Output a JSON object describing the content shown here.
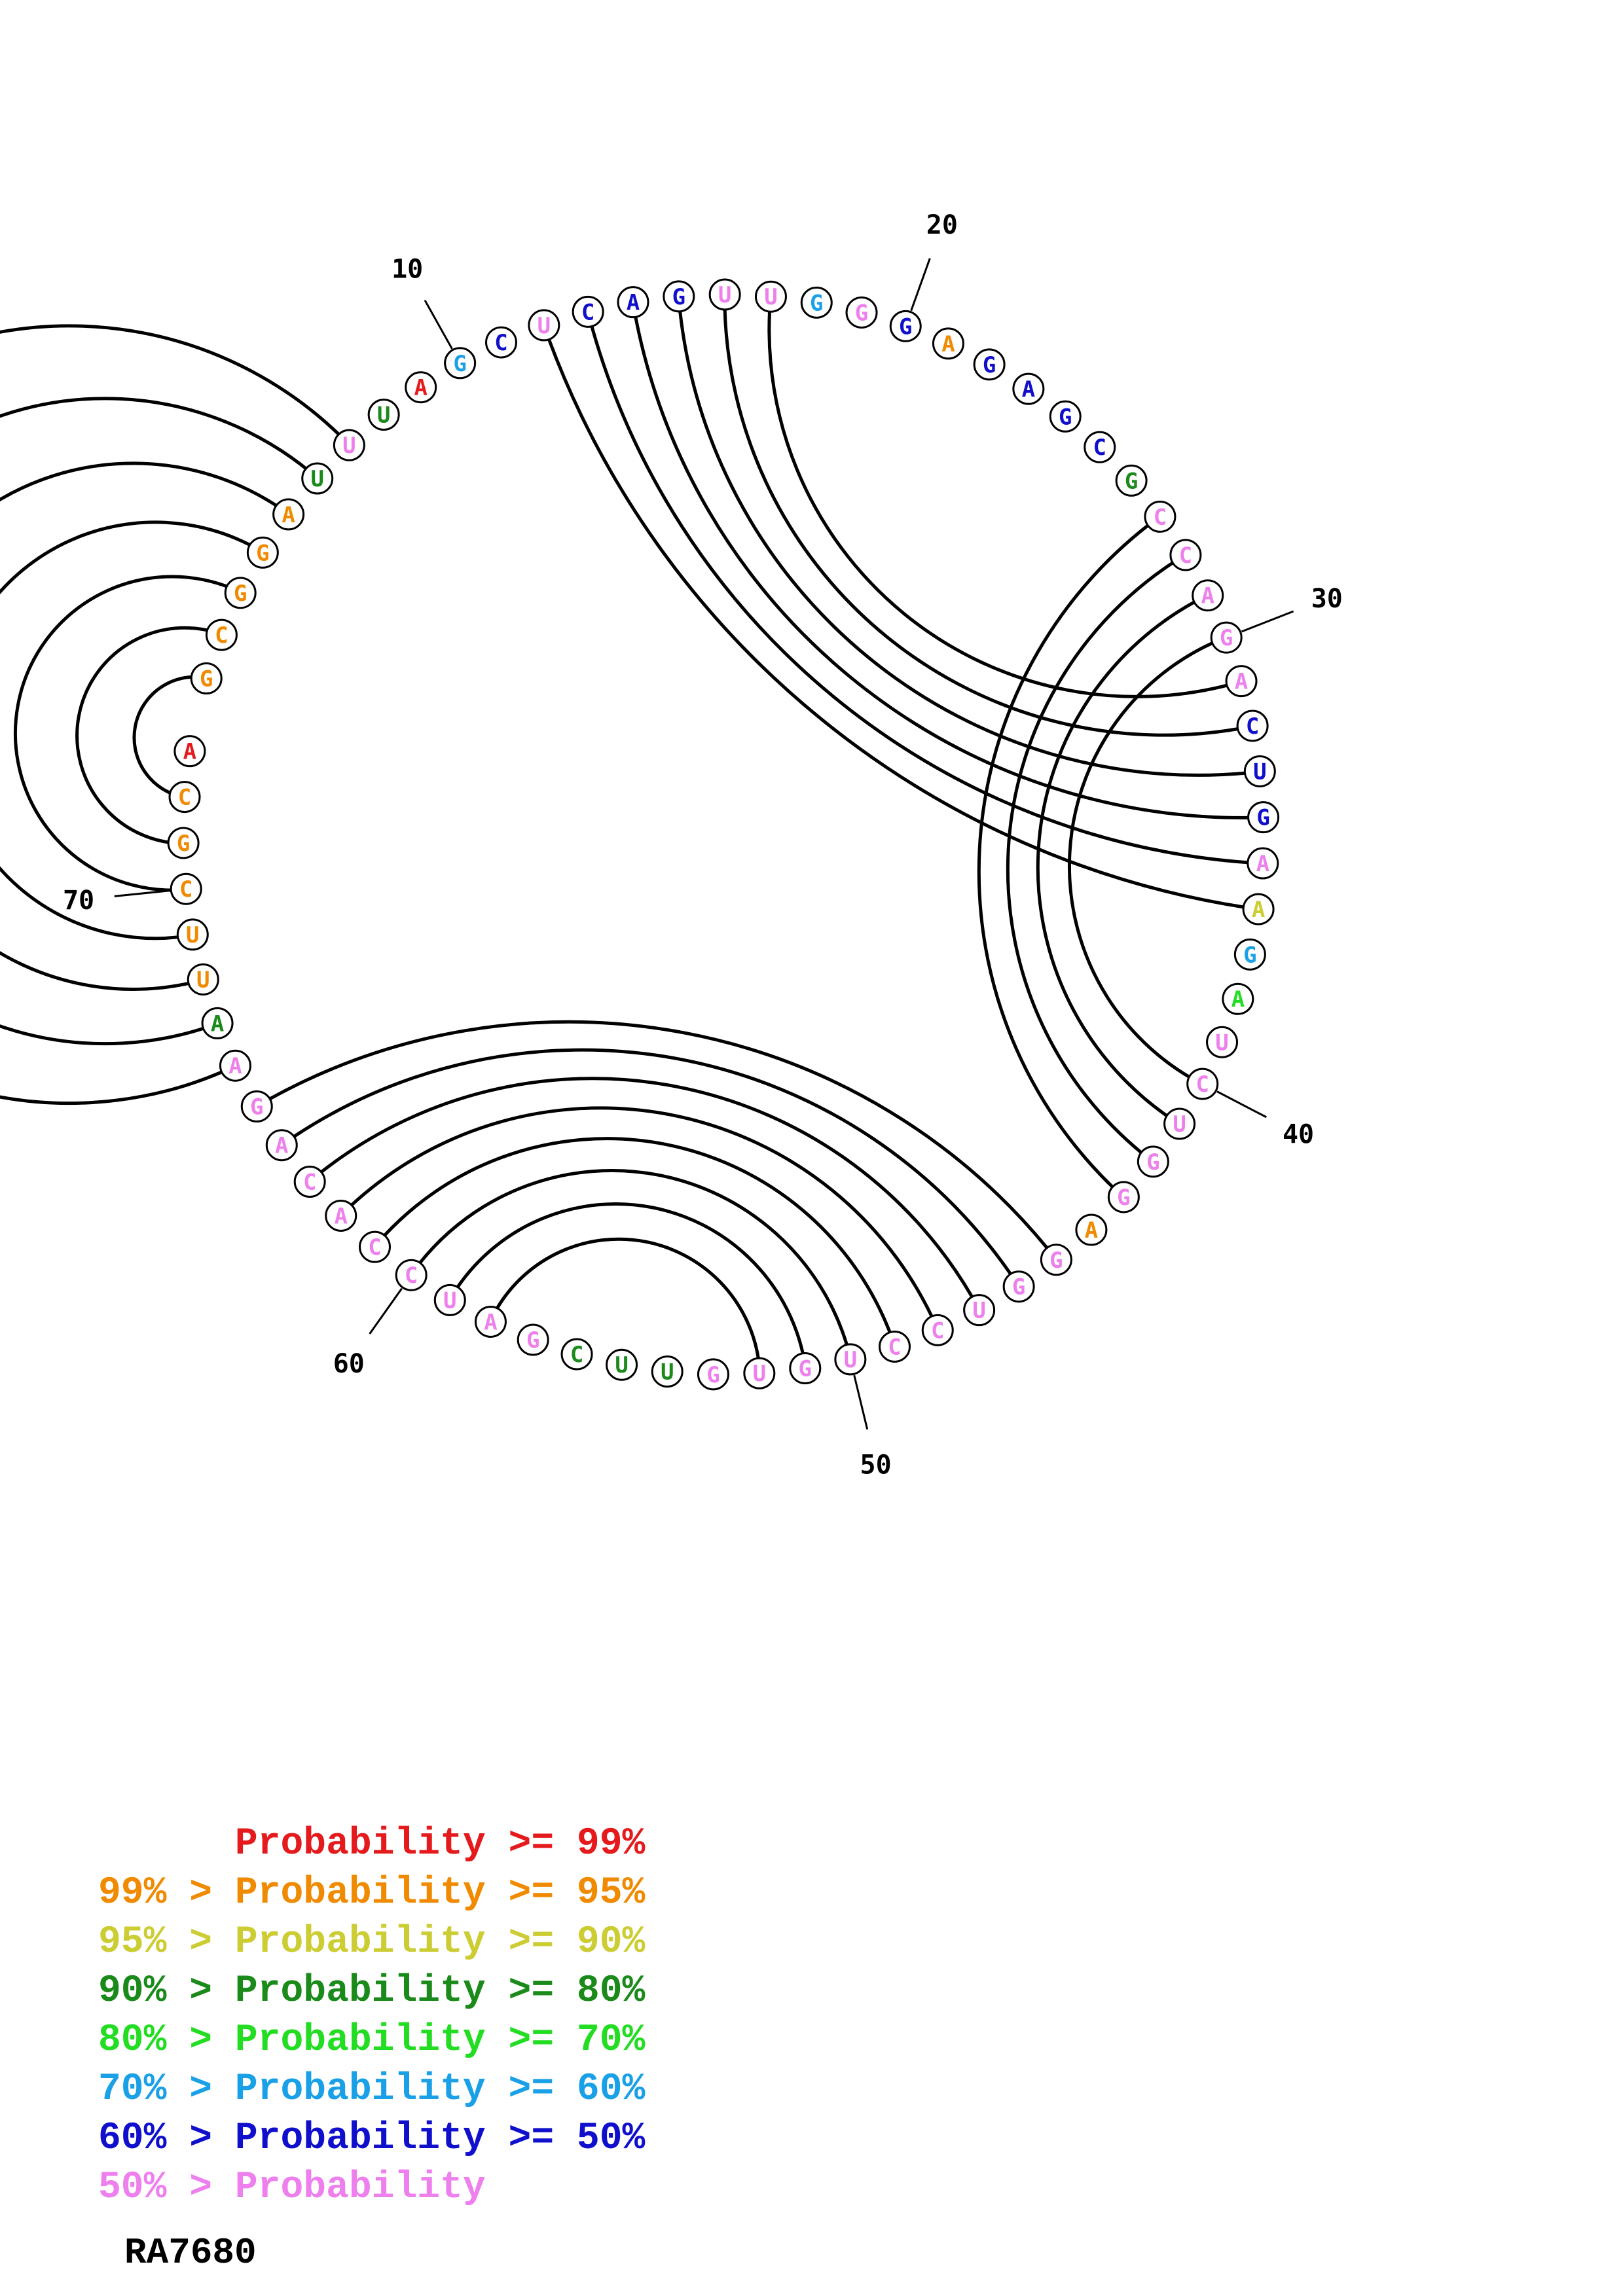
{
  "sequence_name": "RA7680",
  "tiers": {
    "red": "#e41a1c",
    "orange": "#f08a00",
    "yellow": "#cccc33",
    "darkgreen": "#1a8a1a",
    "green": "#22dd22",
    "cyan": "#1aa0e6",
    "blue": "#1010cc",
    "pink": "#ee80ee"
  },
  "nucleotides": [
    {
      "n": 1,
      "base": "G",
      "tier": "orange"
    },
    {
      "n": 2,
      "base": "C",
      "tier": "orange"
    },
    {
      "n": 3,
      "base": "G",
      "tier": "orange"
    },
    {
      "n": 4,
      "base": "G",
      "tier": "orange"
    },
    {
      "n": 5,
      "base": "A",
      "tier": "orange"
    },
    {
      "n": 6,
      "base": "U",
      "tier": "darkgreen"
    },
    {
      "n": 7,
      "base": "U",
      "tier": "pink"
    },
    {
      "n": 8,
      "base": "U",
      "tier": "darkgreen"
    },
    {
      "n": 9,
      "base": "A",
      "tier": "red"
    },
    {
      "n": 10,
      "base": "G",
      "tier": "cyan"
    },
    {
      "n": 11,
      "base": "C",
      "tier": "blue"
    },
    {
      "n": 12,
      "base": "U",
      "tier": "pink"
    },
    {
      "n": 13,
      "base": "C",
      "tier": "blue"
    },
    {
      "n": 14,
      "base": "A",
      "tier": "blue"
    },
    {
      "n": 15,
      "base": "G",
      "tier": "blue"
    },
    {
      "n": 16,
      "base": "U",
      "tier": "pink"
    },
    {
      "n": 17,
      "base": "U",
      "tier": "pink"
    },
    {
      "n": 18,
      "base": "G",
      "tier": "cyan"
    },
    {
      "n": 19,
      "base": "G",
      "tier": "pink"
    },
    {
      "n": 20,
      "base": "G",
      "tier": "blue"
    },
    {
      "n": 21,
      "base": "A",
      "tier": "orange"
    },
    {
      "n": 22,
      "base": "G",
      "tier": "blue"
    },
    {
      "n": 23,
      "base": "A",
      "tier": "blue"
    },
    {
      "n": 24,
      "base": "G",
      "tier": "blue"
    },
    {
      "n": 25,
      "base": "C",
      "tier": "blue"
    },
    {
      "n": 26,
      "base": "G",
      "tier": "darkgreen"
    },
    {
      "n": 27,
      "base": "C",
      "tier": "pink"
    },
    {
      "n": 28,
      "base": "C",
      "tier": "pink"
    },
    {
      "n": 29,
      "base": "A",
      "tier": "pink"
    },
    {
      "n": 30,
      "base": "G",
      "tier": "pink"
    },
    {
      "n": 31,
      "base": "A",
      "tier": "pink"
    },
    {
      "n": 32,
      "base": "C",
      "tier": "blue"
    },
    {
      "n": 33,
      "base": "U",
      "tier": "blue"
    },
    {
      "n": 34,
      "base": "G",
      "tier": "blue"
    },
    {
      "n": 35,
      "base": "A",
      "tier": "pink"
    },
    {
      "n": 36,
      "base": "A",
      "tier": "yellow"
    },
    {
      "n": 37,
      "base": "G",
      "tier": "cyan"
    },
    {
      "n": 38,
      "base": "A",
      "tier": "green"
    },
    {
      "n": 39,
      "base": "U",
      "tier": "pink"
    },
    {
      "n": 40,
      "base": "C",
      "tier": "pink"
    },
    {
      "n": 41,
      "base": "U",
      "tier": "pink"
    },
    {
      "n": 42,
      "base": "G",
      "tier": "pink"
    },
    {
      "n": 43,
      "base": "G",
      "tier": "pink"
    },
    {
      "n": 44,
      "base": "A",
      "tier": "orange"
    },
    {
      "n": 45,
      "base": "G",
      "tier": "pink"
    },
    {
      "n": 46,
      "base": "G",
      "tier": "pink"
    },
    {
      "n": 47,
      "base": "U",
      "tier": "pink"
    },
    {
      "n": 48,
      "base": "C",
      "tier": "pink"
    },
    {
      "n": 49,
      "base": "C",
      "tier": "pink"
    },
    {
      "n": 50,
      "base": "U",
      "tier": "pink"
    },
    {
      "n": 51,
      "base": "G",
      "tier": "pink"
    },
    {
      "n": 52,
      "base": "U",
      "tier": "pink"
    },
    {
      "n": 53,
      "base": "G",
      "tier": "pink"
    },
    {
      "n": 54,
      "base": "U",
      "tier": "darkgreen"
    },
    {
      "n": 55,
      "base": "U",
      "tier": "darkgreen"
    },
    {
      "n": 56,
      "base": "C",
      "tier": "darkgreen"
    },
    {
      "n": 57,
      "base": "G",
      "tier": "pink"
    },
    {
      "n": 58,
      "base": "A",
      "tier": "pink"
    },
    {
      "n": 59,
      "base": "U",
      "tier": "pink"
    },
    {
      "n": 60,
      "base": "C",
      "tier": "pink"
    },
    {
      "n": 61,
      "base": "C",
      "tier": "pink"
    },
    {
      "n": 62,
      "base": "A",
      "tier": "pink"
    },
    {
      "n": 63,
      "base": "C",
      "tier": "pink"
    },
    {
      "n": 64,
      "base": "A",
      "tier": "pink"
    },
    {
      "n": 65,
      "base": "G",
      "tier": "pink"
    },
    {
      "n": 66,
      "base": "A",
      "tier": "pink"
    },
    {
      "n": 67,
      "base": "A",
      "tier": "darkgreen"
    },
    {
      "n": 68,
      "base": "U",
      "tier": "orange"
    },
    {
      "n": 69,
      "base": "U",
      "tier": "orange"
    },
    {
      "n": 70,
      "base": "C",
      "tier": "orange"
    },
    {
      "n": 71,
      "base": "G",
      "tier": "orange"
    },
    {
      "n": 72,
      "base": "C",
      "tier": "orange"
    },
    {
      "n": 73,
      "base": "A",
      "tier": "red"
    }
  ],
  "pairs": [
    [
      1,
      72
    ],
    [
      2,
      71
    ],
    [
      3,
      70
    ],
    [
      4,
      69
    ],
    [
      5,
      68
    ],
    [
      6,
      67
    ],
    [
      7,
      66
    ],
    [
      12,
      36
    ],
    [
      13,
      35
    ],
    [
      14,
      34
    ],
    [
      15,
      33
    ],
    [
      16,
      32
    ],
    [
      17,
      31
    ],
    [
      27,
      43
    ],
    [
      28,
      42
    ],
    [
      29,
      41
    ],
    [
      30,
      40
    ],
    [
      45,
      65
    ],
    [
      46,
      64
    ],
    [
      47,
      63
    ],
    [
      48,
      62
    ],
    [
      49,
      61
    ],
    [
      50,
      60
    ],
    [
      51,
      59
    ],
    [
      52,
      58
    ]
  ],
  "position_labels": [
    "10",
    "20",
    "30",
    "40",
    "50",
    "60",
    "70"
  ],
  "legend": [
    {
      "prefix": "",
      "label": "Probability >= 99%",
      "tier": "red"
    },
    {
      "prefix": "99% > ",
      "label": "Probability >= 95%",
      "tier": "orange"
    },
    {
      "prefix": "95% > ",
      "label": "Probability >= 90%",
      "tier": "yellow"
    },
    {
      "prefix": "90% > ",
      "label": "Probability >= 80%",
      "tier": "darkgreen"
    },
    {
      "prefix": "80% > ",
      "label": "Probability >= 70%",
      "tier": "green"
    },
    {
      "prefix": "70% > ",
      "label": "Probability >= 60%",
      "tier": "cyan"
    },
    {
      "prefix": "60% > ",
      "label": "Probability >= 50%",
      "tier": "blue"
    },
    {
      "prefix": "50% > ",
      "label": "Probability",
      "tier": "pink"
    }
  ]
}
